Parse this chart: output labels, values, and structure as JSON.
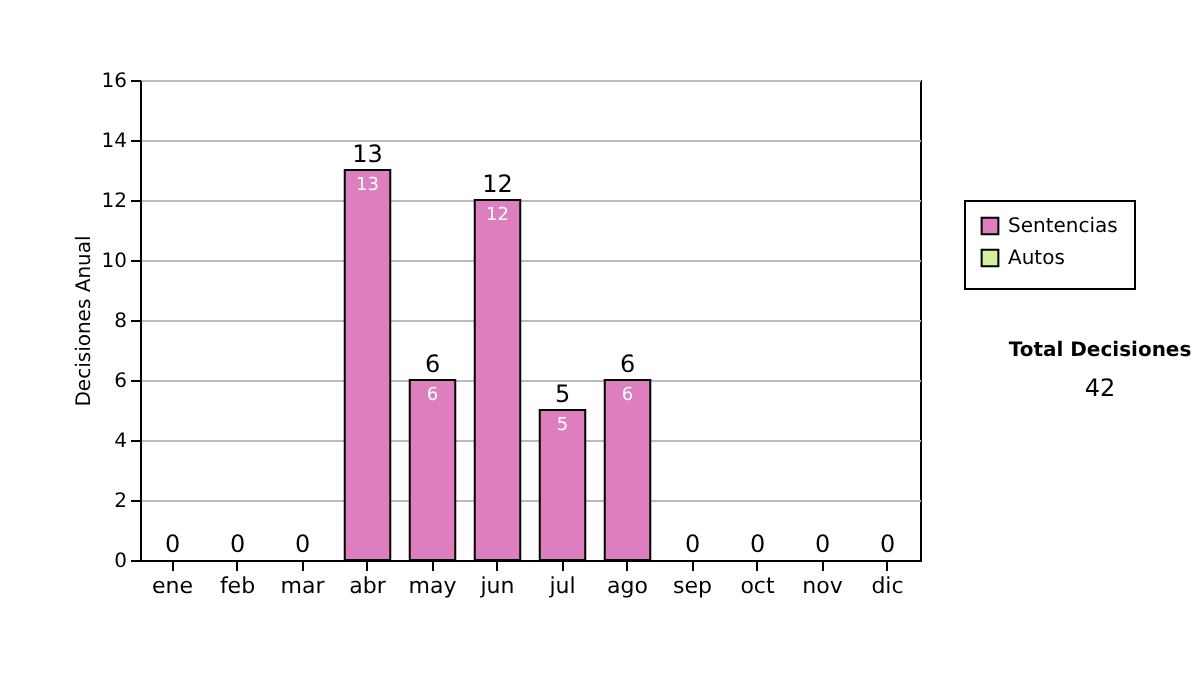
{
  "chart_data": {
    "type": "bar",
    "ylabel": "Decisiones Anual",
    "categories": [
      "ene",
      "feb",
      "mar",
      "abr",
      "may",
      "jun",
      "jul",
      "ago",
      "sep",
      "oct",
      "nov",
      "dic"
    ],
    "series": [
      {
        "name": "Sentencias",
        "color": "#dd7fbf",
        "values": [
          0,
          0,
          0,
          13,
          6,
          12,
          5,
          6,
          0,
          0,
          0,
          0
        ],
        "value_labels": [
          null,
          null,
          null,
          "13",
          "6",
          "12",
          "5",
          "6",
          null,
          null,
          null,
          null
        ]
      },
      {
        "name": "Autos",
        "color": "#d4eea0",
        "values": [
          0,
          0,
          0,
          0,
          0,
          0,
          0,
          0,
          0,
          0,
          0,
          0
        ]
      }
    ],
    "stacked": true,
    "totals": [
      "0",
      "0",
      "0",
      "13",
      "6",
      "12",
      "5",
      "6",
      "0",
      "0",
      "0",
      "0"
    ],
    "ylim": [
      0,
      16
    ],
    "yticks": [
      0,
      2,
      4,
      6,
      8,
      10,
      12,
      14,
      16
    ],
    "grid": "y",
    "legend": "right",
    "annotations": [
      "Total Decisiones",
      "42"
    ]
  }
}
